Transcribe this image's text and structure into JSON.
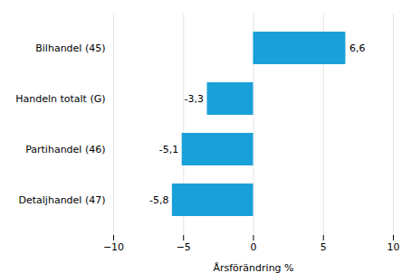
{
  "chart_data": {
    "type": "bar",
    "orientation": "horizontal",
    "categories": [
      "Detaljhandel (47)",
      "Partihandel (46)",
      "Handeln totalt (G)",
      "Bilhandel (45)"
    ],
    "values": [
      -5.8,
      -5.1,
      -3.3,
      6.6
    ],
    "value_labels": [
      "-5,8",
      "-5,1",
      "-3,3",
      "6,6"
    ],
    "data_labels": true,
    "color": "#1aa0d8",
    "xlabel": "Årsförändring %",
    "xlim": [
      -10,
      10
    ],
    "xticks": [
      -10,
      -5,
      0,
      5,
      10
    ],
    "grid": true
  }
}
